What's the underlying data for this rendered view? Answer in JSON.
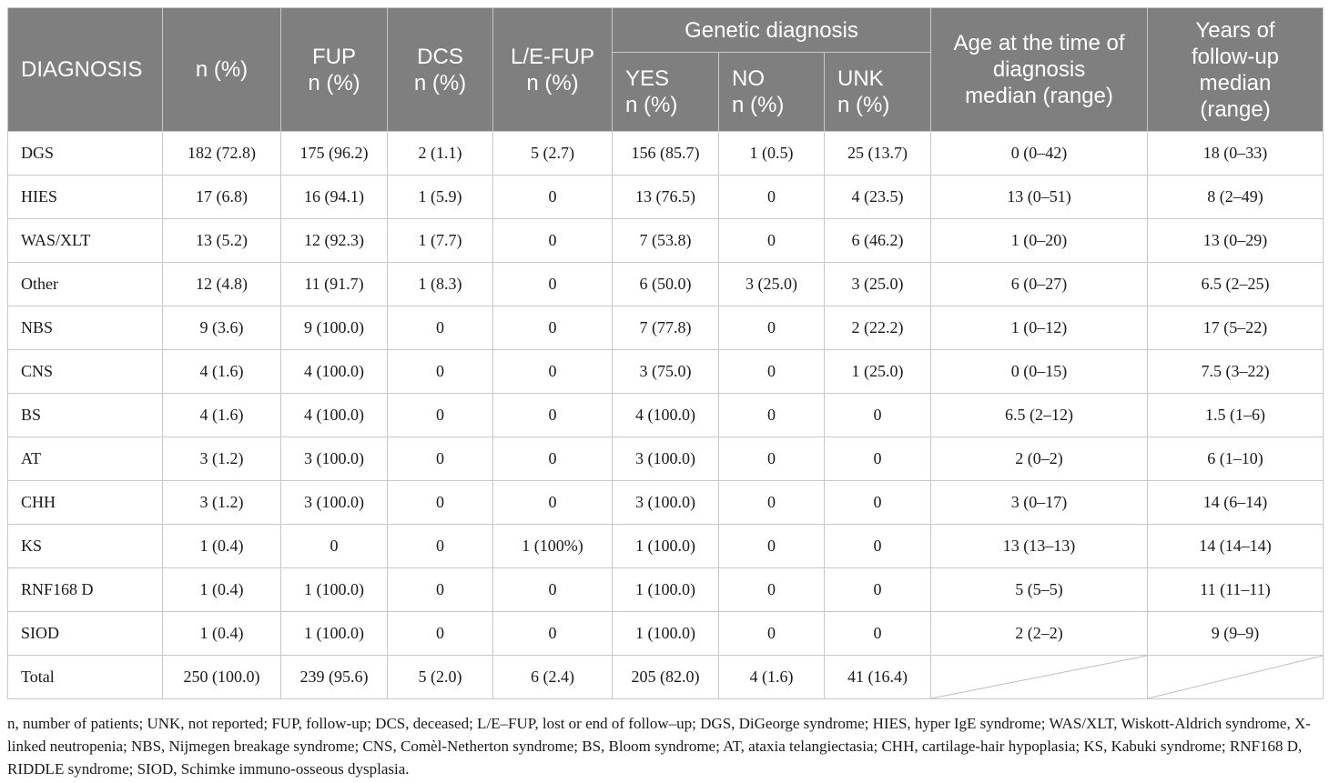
{
  "headers": {
    "diagnosis": "DIAGNOSIS",
    "n_pct": "n (%)",
    "fup": [
      "FUP",
      "n (%)"
    ],
    "dcs": [
      "DCS",
      "n (%)"
    ],
    "le_fup": [
      "L/E-FUP",
      "n (%)"
    ],
    "genetic": "Genetic diagnosis",
    "yes": [
      "YES",
      "n (%)"
    ],
    "no": [
      "NO",
      "n (%)"
    ],
    "unk": [
      "UNK",
      "n (%)"
    ],
    "age": [
      "Age at the time of",
      "diagnosis",
      "median (range)"
    ],
    "years": [
      "Years of",
      "follow-up",
      "median",
      "(range)"
    ]
  },
  "rows": [
    [
      "DGS",
      "182 (72.8)",
      "175 (96.2)",
      "2 (1.1)",
      "5 (2.7)",
      "156 (85.7)",
      "1 (0.5)",
      "25 (13.7)",
      "0 (0–42)",
      "18 (0–33)"
    ],
    [
      "HIES",
      "17 (6.8)",
      "16 (94.1)",
      "1 (5.9)",
      "0",
      "13 (76.5)",
      "0",
      "4 (23.5)",
      "13 (0–51)",
      "8 (2–49)"
    ],
    [
      "WAS/XLT",
      "13 (5.2)",
      "12 (92.3)",
      "1 (7.7)",
      "0",
      "7 (53.8)",
      "0",
      "6 (46.2)",
      "1 (0–20)",
      "13 (0–29)"
    ],
    [
      "Other",
      "12 (4.8)",
      "11 (91.7)",
      "1 (8.3)",
      "0",
      "6 (50.0)",
      "3 (25.0)",
      "3 (25.0)",
      "6 (0–27)",
      "6.5 (2–25)"
    ],
    [
      "NBS",
      "9 (3.6)",
      "9 (100.0)",
      "0",
      "0",
      "7 (77.8)",
      "0",
      "2 (22.2)",
      "1 (0–12)",
      "17 (5–22)"
    ],
    [
      "CNS",
      "4 (1.6)",
      "4 (100.0)",
      "0",
      "0",
      "3 (75.0)",
      "0",
      "1 (25.0)",
      "0 (0–15)",
      "7.5 (3–22)"
    ],
    [
      "BS",
      "4 (1.6)",
      "4 (100.0)",
      "0",
      "0",
      "4 (100.0)",
      "0",
      "0",
      "6.5 (2–12)",
      "1.5 (1–6)"
    ],
    [
      "AT",
      "3 (1.2)",
      "3 (100.0)",
      "0",
      "0",
      "3 (100.0)",
      "0",
      "0",
      "2 (0–2)",
      "6 (1–10)"
    ],
    [
      "CHH",
      "3 (1.2)",
      "3 (100.0)",
      "0",
      "0",
      "3 (100.0)",
      "0",
      "0",
      "3 (0–17)",
      "14 (6–14)"
    ],
    [
      "KS",
      "1 (0.4)",
      "0",
      "0",
      "1 (100%)",
      "1 (100.0)",
      "0",
      "0",
      "13 (13–13)",
      "14 (14–14)"
    ],
    [
      "RNF168 D",
      "1 (0.4)",
      "1 (100.0)",
      "0",
      "0",
      "1 (100.0)",
      "0",
      "0",
      "5 (5–5)",
      "11 (11–11)"
    ],
    [
      "SIOD",
      "1 (0.4)",
      "1 (100.0)",
      "0",
      "0",
      "1 (100.0)",
      "0",
      "0",
      "2 (2–2)",
      "9 (9–9)"
    ],
    [
      "Total",
      "250 (100.0)",
      "239 (95.6)",
      "5 (2.0)",
      "6 (2.4)",
      "205 (82.0)",
      "4 (1.6)",
      "41 (16.4)",
      "",
      ""
    ]
  ],
  "footnote": "n, number of patients; UNK, not reported; FUP, follow-up; DCS, deceased; L/E–FUP, lost or end of follow–up; DGS, DiGeorge syndrome; HIES, hyper IgE syndrome; WAS/XLT, Wiskott-Aldrich syndrome, X-linked neutropenia; NBS, Nijmegen breakage syndrome; CNS, Comèl-Netherton syndrome; BS, Bloom syndrome; AT, ataxia telangiectasia; CHH, cartilage-hair hypoplasia; KS, Kabuki syndrome; RNF168 D, RIDDLE syndrome; SIOD, Schimke immuno-osseous dysplasia."
}
